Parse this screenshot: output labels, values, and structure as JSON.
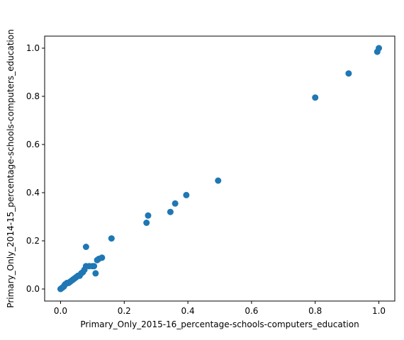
{
  "chart_data": {
    "type": "scatter",
    "title": "",
    "xlabel": "Primary_Only_2015-16_percentage-schools-computers_education",
    "ylabel": "Primary_Only_2014-15_percentage-schools-computers_education",
    "xlim": [
      -0.05,
      1.05
    ],
    "ylim": [
      -0.05,
      1.05
    ],
    "xticks": [
      0.0,
      0.2,
      0.4,
      0.6,
      0.8,
      1.0
    ],
    "yticks": [
      0.0,
      0.2,
      0.4,
      0.6,
      0.8,
      1.0
    ],
    "xtick_labels": [
      "0.0",
      "0.2",
      "0.4",
      "0.6",
      "0.8",
      "1.0"
    ],
    "ytick_labels": [
      "0.0",
      "0.2",
      "0.4",
      "0.6",
      "0.8",
      "1.0"
    ],
    "grid": false,
    "marker_color": "#1f77b4",
    "series": [
      {
        "x": [
          0.0,
          0.005,
          0.01,
          0.012,
          0.015,
          0.02,
          0.025,
          0.03,
          0.035,
          0.04,
          0.045,
          0.05,
          0.055,
          0.06,
          0.065,
          0.07,
          0.075,
          0.08,
          0.08,
          0.09,
          0.1,
          0.105,
          0.11,
          0.115,
          0.12,
          0.13,
          0.16,
          0.27,
          0.275,
          0.345,
          0.36,
          0.395,
          0.495,
          0.8,
          0.905,
          0.995,
          1.0
        ],
        "y": [
          0.0,
          0.005,
          0.01,
          0.015,
          0.02,
          0.025,
          0.025,
          0.03,
          0.035,
          0.04,
          0.045,
          0.05,
          0.055,
          0.055,
          0.065,
          0.07,
          0.08,
          0.095,
          0.175,
          0.095,
          0.095,
          0.095,
          0.065,
          0.12,
          0.125,
          0.13,
          0.21,
          0.275,
          0.305,
          0.32,
          0.355,
          0.39,
          0.45,
          0.795,
          0.895,
          0.985,
          1.0
        ]
      }
    ]
  }
}
